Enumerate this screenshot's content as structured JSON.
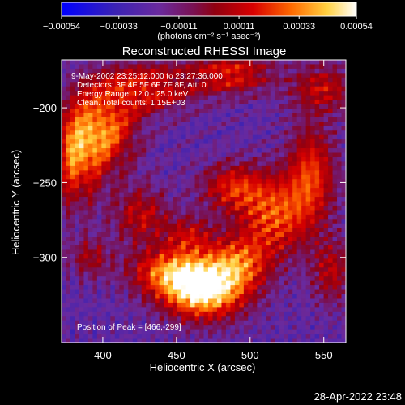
{
  "chart_data": {
    "type": "heatmap",
    "title": "Reconstructed RHESSI Image",
    "xlabel": "Heliocentric X (arcsec)",
    "ylabel": "Heliocentric Y (arcsec)",
    "xlim": [
      372,
      565
    ],
    "ylim": [
      -357,
      -168
    ],
    "x_ticks": [
      400,
      450,
      500,
      550
    ],
    "y_ticks": [
      -200,
      -250,
      -300
    ],
    "colorbar": {
      "range": [
        -0.00054,
        0.00054
      ],
      "ticks": [
        -0.00054,
        -0.00033,
        -0.00011,
        0.00011,
        0.00033,
        0.00054
      ],
      "tick_labels": [
        "-0.00054",
        "-0.00033",
        "-0.00011",
        "0.00011",
        "0.00033",
        "0.00054"
      ],
      "units_label": "(photons cm⁻² s⁻¹ asec⁻²)",
      "colors": [
        "#0000ff",
        "#4b1c8c",
        "#6a2a9e",
        "#8b0018",
        "#c80000",
        "#ff6600",
        "#ffd040",
        "#ffffff"
      ]
    },
    "annotations": [
      "9-May-2002 23:25:12.000 to 23:27:36.000",
      "Detectors: 3F 4F 5F 6F 7F 8F, Att: 0",
      "Energy Range: 12.0 - 25.0 keV",
      "Clean.  Total counts: 1.15E+03",
      "Position of Peak = [466,-299]"
    ],
    "peak": {
      "x": 466,
      "y": -299
    },
    "grid": false
  },
  "footer": {
    "timestamp": "28-Apr-2022 23:48"
  }
}
